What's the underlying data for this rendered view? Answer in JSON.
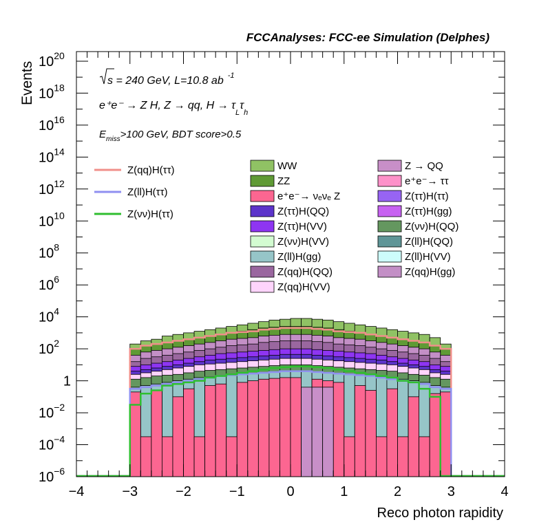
{
  "chart_data": {
    "type": "bar",
    "title": "FCCAnalyses: FCC-ee Simulation (Delphes)",
    "xlabel": "Reco photon rapidity",
    "ylabel": "Events",
    "xlim": [
      -4,
      4
    ],
    "ylim_log10": [
      -6,
      20.6
    ],
    "log_y": true,
    "x_ticks": [
      "−4",
      "−3",
      "−2",
      "−1",
      "0",
      "1",
      "2",
      "3",
      "4"
    ],
    "y_ticks": [
      {
        "base": "10",
        "exp": "20"
      },
      {
        "base": "10",
        "exp": "18"
      },
      {
        "base": "10",
        "exp": "16"
      },
      {
        "base": "10",
        "exp": "14"
      },
      {
        "base": "10",
        "exp": "12"
      },
      {
        "base": "10",
        "exp": "10"
      },
      {
        "base": "10",
        "exp": "8"
      },
      {
        "base": "10",
        "exp": "6"
      },
      {
        "base": "10",
        "exp": "4"
      },
      {
        "base": "10",
        "exp": "2"
      },
      {
        "base": "1",
        "exp": ""
      },
      {
        "base": "10",
        "exp": "−2"
      },
      {
        "base": "10",
        "exp": "−4"
      },
      {
        "base": "10",
        "exp": "−6"
      }
    ],
    "annotations": {
      "energy_sqrt": "s",
      "energy_rest": " = 240 GeV, L=10.8 ab",
      "energy_sup": "-1",
      "process_main": "e⁺e⁻ → Z H, Z  → qq, H  → τ",
      "process_sub_l": "L",
      "process_tau2": "τ",
      "process_sub_h": "h",
      "cut_prefix": "E",
      "cut_sub": "miss",
      "cut_rest": ">100 GeV, BDT score>0.5"
    },
    "bin_edges_x": [
      -3.0,
      2.9,
      0.2
    ],
    "stack_series": [
      {
        "name": "WW",
        "color": "#90c264",
        "log_values": [
          2.3,
          2.5,
          2.6,
          2.8,
          2.9,
          3.0,
          3.1,
          3.2,
          3.3,
          3.4,
          3.5,
          3.6,
          3.7,
          3.8,
          3.85,
          3.9,
          3.9,
          3.85,
          3.8,
          3.7,
          3.6,
          3.5,
          3.4,
          3.3,
          3.2,
          3.1,
          3.0,
          2.9,
          2.7,
          2.3
        ]
      },
      {
        "name": "ZZ",
        "color": "#5f9a35",
        "log_values": [
          2.0,
          2.2,
          2.3,
          2.4,
          2.5,
          2.6,
          2.7,
          2.8,
          2.9,
          3.0,
          3.1,
          3.2,
          3.3,
          3.35,
          3.4,
          3.4,
          3.4,
          3.35,
          3.3,
          3.2,
          3.1,
          3.0,
          2.9,
          2.8,
          2.7,
          2.6,
          2.5,
          2.4,
          2.2,
          2.0
        ]
      },
      {
        "name": "Z(qq)H(gg)",
        "color": "#c38fc6",
        "log_values": [
          1.6,
          1.8,
          1.9,
          2.0,
          2.1,
          2.2,
          2.3,
          2.4,
          2.5,
          2.6,
          2.65,
          2.7,
          2.8,
          2.85,
          2.9,
          2.9,
          2.9,
          2.85,
          2.8,
          2.7,
          2.65,
          2.6,
          2.5,
          2.4,
          2.3,
          2.2,
          2.1,
          2.0,
          1.8,
          1.6
        ]
      },
      {
        "name": "Z(qq)H(QQ)",
        "color": "#9a679f",
        "log_values": [
          1.2,
          1.4,
          1.5,
          1.6,
          1.7,
          1.8,
          1.9,
          2.0,
          2.1,
          2.2,
          2.25,
          2.3,
          2.4,
          2.45,
          2.5,
          2.5,
          2.5,
          2.45,
          2.4,
          2.3,
          2.25,
          2.2,
          2.1,
          2.0,
          1.9,
          1.8,
          1.7,
          1.6,
          1.4,
          1.2
        ]
      },
      {
        "name": "Z(ττ)H(VV)",
        "color": "#8e35f2",
        "log_values": [
          0.9,
          1.0,
          1.1,
          1.2,
          1.3,
          1.4,
          1.5,
          1.6,
          1.7,
          1.75,
          1.8,
          1.85,
          1.9,
          1.95,
          2.0,
          2.0,
          2.0,
          1.95,
          1.9,
          1.85,
          1.8,
          1.75,
          1.7,
          1.6,
          1.5,
          1.4,
          1.3,
          1.2,
          1.0,
          0.9
        ]
      },
      {
        "name": "Z(ττ)H(QQ)",
        "color": "#5c34ca",
        "log_values": [
          0.6,
          0.7,
          0.8,
          0.9,
          1.0,
          1.1,
          1.2,
          1.3,
          1.35,
          1.4,
          1.45,
          1.5,
          1.55,
          1.6,
          1.65,
          1.65,
          1.65,
          1.6,
          1.55,
          1.5,
          1.45,
          1.4,
          1.35,
          1.3,
          1.2,
          1.1,
          1.0,
          0.9,
          0.7,
          0.6
        ]
      },
      {
        "name": "Z(qq)H(VV)",
        "color": "#fed4fb",
        "log_values": [
          0.4,
          0.5,
          0.6,
          0.7,
          0.8,
          0.9,
          1.0,
          1.05,
          1.1,
          1.15,
          1.2,
          1.25,
          1.3,
          1.35,
          1.4,
          1.4,
          1.4,
          1.35,
          1.3,
          1.25,
          1.2,
          1.15,
          1.1,
          1.05,
          1.0,
          0.9,
          0.8,
          0.7,
          0.5,
          0.4
        ]
      },
      {
        "name": "Z(νν)H(QQ)",
        "color": "#64975f",
        "log_values": [
          0.1,
          0.2,
          0.3,
          0.35,
          0.4,
          0.5,
          0.6,
          0.65,
          0.7,
          0.75,
          0.8,
          0.85,
          0.9,
          0.95,
          1.0,
          1.0,
          1.0,
          0.95,
          0.9,
          0.85,
          0.8,
          0.75,
          0.7,
          0.65,
          0.6,
          0.5,
          0.4,
          0.35,
          0.2,
          0.1
        ]
      },
      {
        "name": "Z(ll)H(gg)",
        "color": "#96c5c8",
        "log_values": [
          -0.4,
          -0.3,
          -0.2,
          -0.1,
          0.0,
          0.1,
          0.2,
          0.25,
          0.3,
          0.35,
          0.4,
          0.45,
          0.5,
          0.55,
          0.6,
          0.6,
          0.6,
          0.55,
          0.5,
          0.45,
          0.4,
          0.35,
          0.3,
          0.25,
          0.2,
          0.1,
          0.0,
          -0.1,
          -0.3,
          -0.4
        ]
      },
      {
        "name": "e⁺e⁻→ νₑνₑ Z",
        "color": "#fc6691",
        "log_values": [
          -0.7,
          -3.5,
          -0.6,
          -3.5,
          -1.0,
          -0.5,
          -3.5,
          -0.3,
          -0.2,
          -3.5,
          -0.1,
          0.0,
          0.1,
          0.15,
          0.2,
          0.2,
          -3.5,
          0.1,
          0.0,
          -0.1,
          -3.5,
          -0.3,
          -0.6,
          -3.5,
          -0.5,
          -3.5,
          -1.0,
          -3.5,
          -0.8,
          -0.7
        ]
      },
      {
        "name": "Z → QQ",
        "color": "#c88fc8",
        "log_values": [
          -7,
          -7,
          -7,
          -7,
          -7,
          -7,
          -7,
          -7,
          -7,
          -7,
          -7,
          -7,
          -7,
          -7,
          -7,
          -7,
          -0.4,
          -0.4,
          -0.4,
          -7,
          -7,
          -7,
          -7,
          -7,
          -7,
          -7,
          -7,
          -7,
          -7,
          -7
        ]
      }
    ],
    "overlay_series": [
      {
        "name": "Z(qq)H(ττ)",
        "color": "#f08f8a",
        "log_values": [
          2.0,
          2.2,
          2.3,
          2.4,
          2.5,
          2.6,
          2.7,
          2.8,
          2.9,
          3.0,
          3.05,
          3.1,
          3.2,
          3.25,
          3.3,
          3.3,
          3.3,
          3.25,
          3.2,
          3.1,
          3.05,
          3.0,
          2.9,
          2.8,
          2.7,
          2.6,
          2.5,
          2.4,
          2.2,
          2.0
        ]
      },
      {
        "name": "Z(ll)H(ττ)",
        "color": "#8f8ff0",
        "log_values": [
          -0.5,
          -0.4,
          -0.3,
          -0.2,
          -0.1,
          0.0,
          0.1,
          0.2,
          0.3,
          0.35,
          0.4,
          0.45,
          0.5,
          0.55,
          0.6,
          0.6,
          0.6,
          0.55,
          0.5,
          0.45,
          0.4,
          0.35,
          0.3,
          0.2,
          0.1,
          0.0,
          -0.1,
          -0.2,
          -0.4,
          -0.5
        ]
      },
      {
        "name": "Z(νν)H(ττ)",
        "color": "#2fbe2f",
        "log_values": [
          -1.5,
          -0.8,
          -0.6,
          -0.3,
          -0.2,
          -0.1,
          0.0,
          0.2,
          0.3,
          0.4,
          0.5,
          0.6,
          0.7,
          0.8,
          0.85,
          0.9,
          0.9,
          0.85,
          0.8,
          0.7,
          0.6,
          0.5,
          0.4,
          0.3,
          0.2,
          0.0,
          -0.1,
          -0.5,
          -1.0,
          -6.0
        ]
      }
    ],
    "legend": {
      "overlay": [
        "Z(qq)H(ττ)",
        "Z(ll)H(ττ)",
        "Z(νν)H(ττ)"
      ],
      "col1": [
        {
          "label": "WW",
          "color": "#90c264"
        },
        {
          "label": "ZZ",
          "color": "#5f9a35"
        },
        {
          "label": "e⁺e⁻→ νₑνₑ Z",
          "color": "#fc6691"
        },
        {
          "label": "Z(ττ)H(QQ)",
          "color": "#5c34ca"
        },
        {
          "label": "Z(ττ)H(VV)",
          "color": "#8e35f2"
        },
        {
          "label": "Z(νν)H(VV)",
          "color": "#d3fcd1"
        },
        {
          "label": "Z(ll)H(gg)",
          "color": "#96c5c8"
        },
        {
          "label": "Z(qq)H(QQ)",
          "color": "#9a679f"
        },
        {
          "label": "Z(qq)H(VV)",
          "color": "#fed4fb"
        }
      ],
      "col2": [
        {
          "label": "Z → QQ",
          "color": "#c88fc8"
        },
        {
          "label": "e⁺e⁻→ ττ",
          "color": "#fd91c9"
        },
        {
          "label": "Z(ττ)H(ττ)",
          "color": "#9764f3"
        },
        {
          "label": "Z(ττ)H(gg)",
          "color": "#c762f1"
        },
        {
          "label": "Z(νν)H(QQ)",
          "color": "#64975f"
        },
        {
          "label": "Z(ll)H(QQ)",
          "color": "#5f9597"
        },
        {
          "label": "Z(ll)H(VV)",
          "color": "#cdfcfb"
        },
        {
          "label": "Z(qq)H(gg)",
          "color": "#c38fc6"
        }
      ]
    }
  }
}
